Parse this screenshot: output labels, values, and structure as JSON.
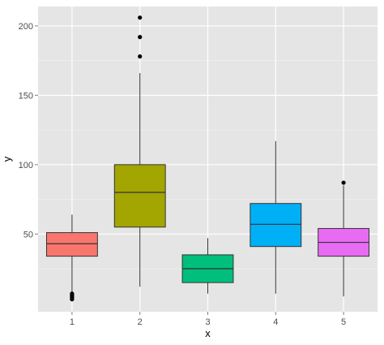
{
  "chart_data": {
    "type": "boxplot",
    "title": "",
    "xlabel": "x",
    "ylabel": "y",
    "ylim": [
      -6,
      214
    ],
    "y_ticks": [
      50,
      100,
      150,
      200
    ],
    "grid": true,
    "legend": "none",
    "background_color": "#e5e5e5",
    "grid_color": "#ffffff",
    "categories": [
      "1",
      "2",
      "3",
      "4",
      "5"
    ],
    "boxes": [
      {
        "category": "1",
        "color": "#f8766d",
        "whisker_low": 8,
        "q1": 34,
        "median": 43,
        "q3": 51,
        "whisker_high": 64,
        "outliers": [
          3,
          4,
          5,
          6,
          7
        ]
      },
      {
        "category": "2",
        "color": "#a3a500",
        "whisker_low": 12,
        "q1": 55,
        "median": 80,
        "q3": 100,
        "whisker_high": 166,
        "outliers": [
          178,
          192,
          206
        ]
      },
      {
        "category": "3",
        "color": "#00bf7d",
        "whisker_low": 7,
        "q1": 15,
        "median": 25,
        "q3": 35,
        "whisker_high": 47,
        "outliers": []
      },
      {
        "category": "4",
        "color": "#00b0f6",
        "whisker_low": 7,
        "q1": 41,
        "median": 57,
        "q3": 72,
        "whisker_high": 117,
        "outliers": []
      },
      {
        "category": "5",
        "color": "#e76bf3",
        "whisker_low": 5,
        "q1": 34,
        "median": 44,
        "q3": 54,
        "whisker_high": 85,
        "outliers": [
          87
        ]
      }
    ]
  }
}
